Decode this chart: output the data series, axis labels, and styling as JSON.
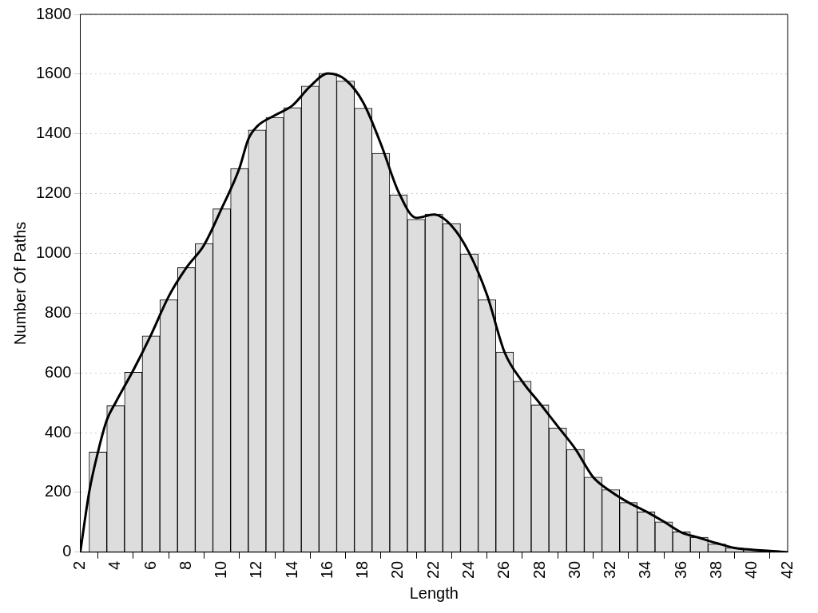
{
  "chart_data": {
    "type": "histogram",
    "xlabel": "Length",
    "ylabel": "Number Of Paths",
    "bins": [
      2.5,
      3.5,
      4.5,
      5.5,
      6.5,
      7.5,
      8.5,
      9.5,
      10.5,
      11.5,
      12.5,
      13.5,
      14.5,
      15.5,
      16.5,
      17.5,
      18.5,
      19.5,
      20.5,
      21.5,
      22.5,
      23.5,
      24.5,
      25.5,
      26.5,
      27.5,
      28.5,
      29.5,
      30.5,
      31.5,
      32.5,
      33.5,
      34.5,
      35.5,
      36.5,
      37.5,
      38.5,
      39.5,
      40.5,
      41.5
    ],
    "values": [
      335,
      490,
      602,
      724,
      845,
      952,
      1033,
      1149,
      1284,
      1413,
      1455,
      1488,
      1560,
      1603,
      1577,
      1486,
      1335,
      1196,
      1114,
      1132,
      1100,
      998,
      845,
      670,
      572,
      493,
      416,
      344,
      251,
      209,
      166,
      135,
      101,
      68,
      50,
      27,
      14,
      9,
      5
    ],
    "color": "#dddddd",
    "series": [
      {
        "type": "line",
        "color": "#000000",
        "x": [
          2,
          2.5,
          3,
          3.5,
          4,
          5,
          6,
          7,
          8,
          9,
          10,
          11,
          11.5,
          12,
          13,
          14,
          15,
          16,
          17,
          18,
          19,
          20,
          21,
          22,
          23,
          24,
          25,
          26,
          27,
          28,
          29,
          30,
          31,
          32,
          33,
          34,
          35,
          36,
          37,
          38,
          39,
          40,
          41,
          42
        ],
        "values": [
          0,
          200,
          335,
          442,
          501,
          609,
          727,
          856,
          952,
          1028,
          1151,
          1285,
          1382,
          1425,
          1462,
          1495,
          1559,
          1602,
          1581,
          1505,
          1366,
          1205,
          1119,
          1130,
          1092,
          1001,
          861,
          668,
          571,
          497,
          421,
          345,
          251,
          203,
          166,
          136,
          102,
          66,
          48,
          30,
          14,
          8,
          4,
          0
        ]
      }
    ],
    "xlim": [
      2,
      42
    ],
    "xticks": [
      2,
      4,
      6,
      8,
      10,
      12,
      14,
      16,
      18,
      20,
      22,
      24,
      26,
      28,
      30,
      32,
      34,
      36,
      38,
      40,
      42
    ],
    "ylim": [
      0,
      1800
    ],
    "yticks": [
      0,
      200,
      400,
      600,
      800,
      1000,
      1200,
      1400,
      1600,
      1800
    ],
    "grid": "y",
    "marker": "none"
  }
}
